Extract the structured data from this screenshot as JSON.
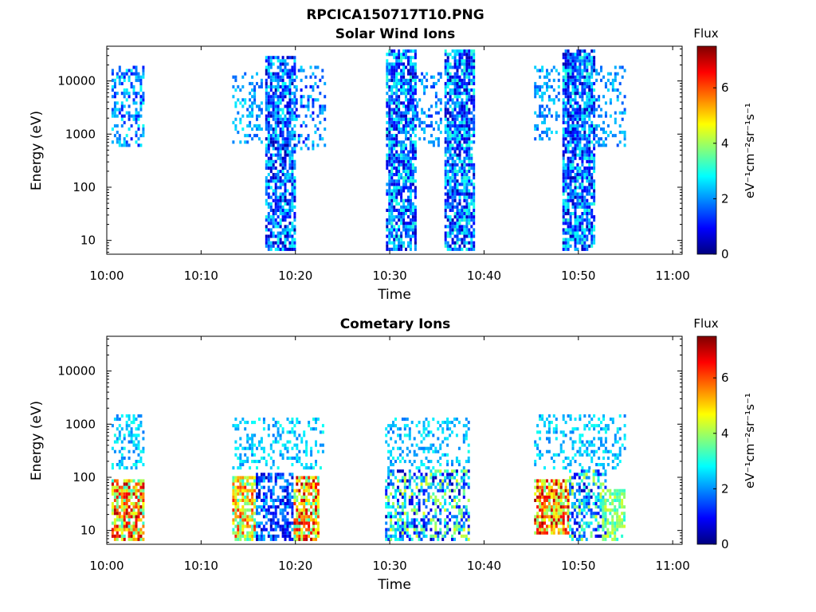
{
  "figure_title": "RPCICA150717T10.PNG",
  "colormap": [
    "#00007f",
    "#0000ff",
    "#007fff",
    "#00ffff",
    "#7fff7f",
    "#ffff00",
    "#ff7f00",
    "#ff0000",
    "#7f0000"
  ],
  "chart_data": [
    {
      "type": "heatmap",
      "title": "Solar Wind Ions",
      "xlabel": "Time",
      "ylabel": "Energy (eV)",
      "xticks": [
        "10:00",
        "10:10",
        "10:20",
        "10:30",
        "10:40",
        "10:50",
        "11:00"
      ],
      "xlim_minutes": [
        0,
        61
      ],
      "yscale": "log",
      "ylim": [
        5.5,
        45000
      ],
      "ytick_values": [
        10,
        100,
        1000,
        10000
      ],
      "yticks": [
        "10",
        "100",
        "1000",
        "10000"
      ],
      "colorbar": {
        "label_top": "Flux",
        "label": "eV⁻¹cm⁻²sr⁻¹s⁻¹",
        "range": [
          0,
          7.5
        ],
        "ticks": [
          "0",
          "2",
          "4",
          "6"
        ]
      },
      "bursts": [
        {
          "t0": 0.5,
          "t1": 3.8,
          "emin": 600,
          "emax": 20000,
          "fmin": 1.0,
          "fmax": 3.0,
          "density": 0.45
        },
        {
          "t0": 13.3,
          "t1": 16.5,
          "emin": 700,
          "emax": 15000,
          "fmin": 1.5,
          "fmax": 2.8,
          "density": 0.3
        },
        {
          "t0": 16.8,
          "t1": 20.0,
          "emin": 6,
          "emax": 30000,
          "fmin": 0.3,
          "fmax": 3.0,
          "density": 0.75
        },
        {
          "t0": 20.0,
          "t1": 23.2,
          "emin": 500,
          "emax": 20000,
          "fmin": 0.8,
          "fmax": 2.6,
          "density": 0.3
        },
        {
          "t0": 29.6,
          "t1": 32.8,
          "emin": 6,
          "emax": 40000,
          "fmin": 0.3,
          "fmax": 3.2,
          "density": 0.8
        },
        {
          "t0": 32.8,
          "t1": 35.5,
          "emin": 600,
          "emax": 15000,
          "fmin": 1.2,
          "fmax": 2.6,
          "density": 0.25
        },
        {
          "t0": 35.8,
          "t1": 39.0,
          "emin": 6,
          "emax": 40000,
          "fmin": 0.3,
          "fmax": 3.2,
          "density": 0.8
        },
        {
          "t0": 45.3,
          "t1": 48.0,
          "emin": 800,
          "emax": 20000,
          "fmin": 1.5,
          "fmax": 2.6,
          "density": 0.3
        },
        {
          "t0": 48.3,
          "t1": 51.8,
          "emin": 6,
          "emax": 40000,
          "fmin": 0.3,
          "fmax": 3.2,
          "density": 0.8
        },
        {
          "t0": 51.8,
          "t1": 55.0,
          "emin": 600,
          "emax": 20000,
          "fmin": 1.5,
          "fmax": 2.6,
          "density": 0.28
        }
      ]
    },
    {
      "type": "heatmap",
      "title": "Cometary Ions",
      "xlabel": "Time",
      "ylabel": "Energy (eV)",
      "xticks": [
        "10:00",
        "10:10",
        "10:20",
        "10:30",
        "10:40",
        "10:50",
        "11:00"
      ],
      "xlim_minutes": [
        0,
        61
      ],
      "yscale": "log",
      "ylim": [
        5.5,
        45000
      ],
      "ytick_values": [
        10,
        100,
        1000,
        10000
      ],
      "yticks": [
        "10",
        "100",
        "1000",
        "10000"
      ],
      "colorbar": {
        "label_top": "Flux",
        "label": "eV⁻¹cm⁻²sr⁻¹s⁻¹",
        "range": [
          0,
          7.5
        ],
        "ticks": [
          "0",
          "2",
          "4",
          "6"
        ]
      },
      "bursts": [
        {
          "t0": 0.5,
          "t1": 3.8,
          "emin": 150,
          "emax": 1500,
          "fmin": 1.8,
          "fmax": 3.0,
          "density": 0.35
        },
        {
          "t0": 0.5,
          "t1": 3.8,
          "emin": 6,
          "emax": 90,
          "fmin": 3.0,
          "fmax": 7.2,
          "density": 0.8
        },
        {
          "t0": 13.3,
          "t1": 23.0,
          "emin": 150,
          "emax": 1400,
          "fmin": 1.8,
          "fmax": 3.0,
          "density": 0.3
        },
        {
          "t0": 13.3,
          "t1": 15.8,
          "emin": 6,
          "emax": 100,
          "fmin": 3.0,
          "fmax": 6.5,
          "density": 0.75
        },
        {
          "t0": 15.8,
          "t1": 19.8,
          "emin": 6,
          "emax": 130,
          "fmin": 0.3,
          "fmax": 2.5,
          "density": 0.6
        },
        {
          "t0": 19.8,
          "t1": 22.5,
          "emin": 6,
          "emax": 110,
          "fmin": 3.0,
          "fmax": 7.2,
          "density": 0.8
        },
        {
          "t0": 29.5,
          "t1": 38.5,
          "emin": 150,
          "emax": 1400,
          "fmin": 1.8,
          "fmax": 3.0,
          "density": 0.3
        },
        {
          "t0": 29.5,
          "t1": 38.5,
          "emin": 6,
          "emax": 150,
          "fmin": 0.3,
          "fmax": 4.5,
          "density": 0.55
        },
        {
          "t0": 45.3,
          "t1": 55.0,
          "emin": 150,
          "emax": 1500,
          "fmin": 1.8,
          "fmax": 3.0,
          "density": 0.3
        },
        {
          "t0": 45.3,
          "t1": 49.0,
          "emin": 8,
          "emax": 90,
          "fmin": 3.5,
          "fmax": 7.2,
          "density": 0.8
        },
        {
          "t0": 49.0,
          "t1": 53.0,
          "emin": 6,
          "emax": 150,
          "fmin": 0.3,
          "fmax": 4.5,
          "density": 0.55
        },
        {
          "t0": 52.5,
          "t1": 55.0,
          "emin": 6,
          "emax": 60,
          "fmin": 3.0,
          "fmax": 4.5,
          "density": 0.6
        }
      ]
    }
  ]
}
